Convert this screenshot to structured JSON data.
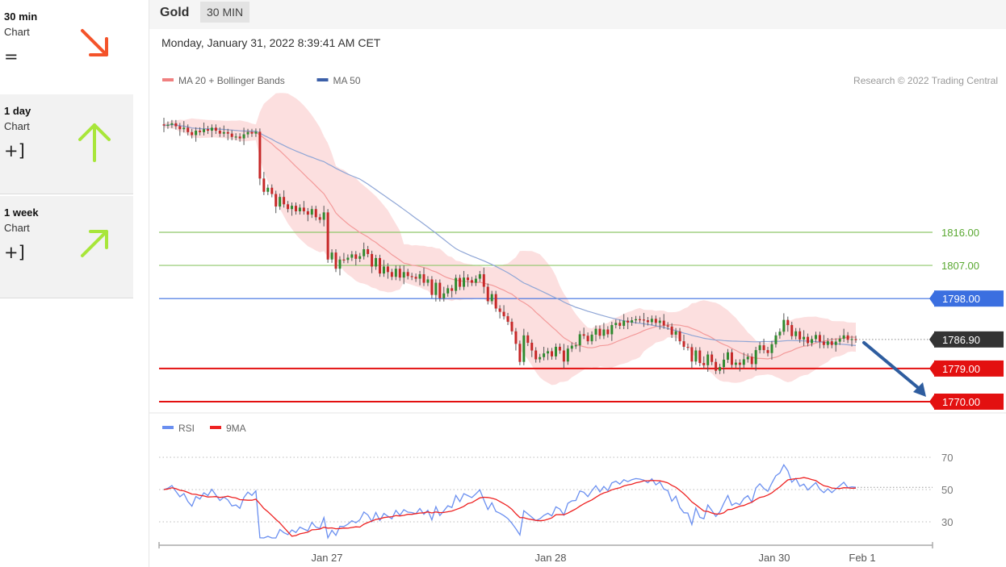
{
  "sidebar": {
    "items": [
      {
        "label": "30 min",
        "sub": "Chart",
        "symbol": "=",
        "arrow": "down-right-arrow-icon",
        "color": "#f4532a"
      },
      {
        "label": "1 day",
        "sub": "Chart",
        "symbol": "+]",
        "arrow": "up-arrow-icon",
        "color": "#a8e63a"
      },
      {
        "label": "1 week",
        "sub": "Chart",
        "symbol": "+]",
        "arrow": "up-right-arrow-icon",
        "color": "#a8e63a"
      }
    ]
  },
  "header": {
    "symbol": "Gold",
    "timeframe": "30 MIN"
  },
  "datetime": "Monday, January 31, 2022 8:39:41 AM CET",
  "chart_data": {
    "type": "candlestick",
    "legend": [
      {
        "label": "MA 20 + Bollinger Bands",
        "color": "#f08080"
      },
      {
        "label": "MA 50",
        "color": "#3b5fa8"
      }
    ],
    "copyright": "Research © 2022 Trading Central",
    "ylim": [
      1763.6,
      1825.0
    ],
    "x_ticks": [
      "Jan 27",
      "Jan 28",
      "Jan 30",
      "Feb 1"
    ],
    "levels": [
      {
        "value": 1816.0,
        "label": "1816.00",
        "type": "resistance",
        "color": "#8fc76a"
      },
      {
        "value": 1807.0,
        "label": "1807.00",
        "type": "resistance",
        "color": "#8fc76a"
      },
      {
        "value": 1798.0,
        "label": "1798.00",
        "type": "pivot",
        "color": "#3b6fe0"
      },
      {
        "value": 1786.9,
        "label": "1786.90",
        "type": "last-price",
        "color": "#333333"
      },
      {
        "value": 1779.0,
        "label": "1779.00",
        "type": "support",
        "color": "#e31010"
      },
      {
        "value": 1770.0,
        "label": "1770.00",
        "type": "support",
        "color": "#e31010"
      }
    ],
    "close": [
      1845.0,
      1845.2,
      1845.6,
      1844.8,
      1844.0,
      1844.4,
      1843.2,
      1842.4,
      1843.6,
      1843.2,
      1844.0,
      1843.6,
      1844.4,
      1843.6,
      1842.8,
      1843.2,
      1842.8,
      1841.9,
      1842.0,
      1841.5,
      1842.6,
      1843.2,
      1842.8,
      1843.3,
      1830.6,
      1827.0,
      1828.1,
      1826.4,
      1823.0,
      1825.6,
      1823.6,
      1822.3,
      1823.2,
      1821.7,
      1822.7,
      1821.7,
      1820.8,
      1822.3,
      1820.1,
      1819.4,
      1821.4,
      1808.6,
      1810.5,
      1806.1,
      1808.6,
      1808.5,
      1809.1,
      1810.0,
      1808.8,
      1809.5,
      1811.4,
      1810.1,
      1806.7,
      1809.0,
      1804.8,
      1806.7,
      1805.2,
      1803.9,
      1806.1,
      1803.7,
      1805.2,
      1804.1,
      1803.9,
      1803.4,
      1804.6,
      1802.3,
      1803.2,
      1799.0,
      1802.3,
      1798.1,
      1799.4,
      1800.8,
      1800.1,
      1803.6,
      1801.2,
      1803.7,
      1803.0,
      1802.3,
      1803.4,
      1804.6,
      1801.2,
      1797.3,
      1799.2,
      1795.3,
      1794.4,
      1793.2,
      1791.7,
      1789.1,
      1785.7,
      1780.8,
      1788.0,
      1786.0,
      1783.9,
      1781.5,
      1782.1,
      1783.1,
      1783.7,
      1782.3,
      1784.9,
      1783.9,
      1780.9,
      1784.4,
      1785.2,
      1785.3,
      1788.3,
      1787.9,
      1786.4,
      1788.2,
      1789.8,
      1787.9,
      1789.6,
      1788.3,
      1790.8,
      1791.4,
      1790.6,
      1792.0,
      1791.5,
      1792.1,
      1792.4,
      1792.3,
      1792.1,
      1791.6,
      1792.5,
      1791.4,
      1792.0,
      1790.7,
      1790.4,
      1788.2,
      1789.1,
      1786.4,
      1784.9,
      1784.8,
      1780.9,
      1783.9,
      1780.5,
      1779.9,
      1782.8,
      1780.8,
      1778.4,
      1779.4,
      1781.4,
      1783.4,
      1780.0,
      1780.6,
      1780.0,
      1781.5,
      1782.2,
      1780.2,
      1784.0,
      1785.3,
      1784.0,
      1783.2,
      1785.6,
      1788.0,
      1789.0,
      1792.2,
      1790.8,
      1787.8,
      1789.1,
      1786.9,
      1787.6,
      1785.9,
      1787.0,
      1788.1,
      1786.3,
      1785.4,
      1786.4,
      1785.4,
      1786.3,
      1787.1,
      1788.0,
      1786.8,
      1787.0,
      1786.9
    ],
    "rsi": {
      "ylim": [
        20,
        80
      ],
      "ticks": [
        70,
        50,
        30
      ],
      "legend": [
        {
          "label": "RSI",
          "color": "#6a8ff0"
        },
        {
          "label": "9MA",
          "color": "#ee2222"
        }
      ]
    }
  }
}
